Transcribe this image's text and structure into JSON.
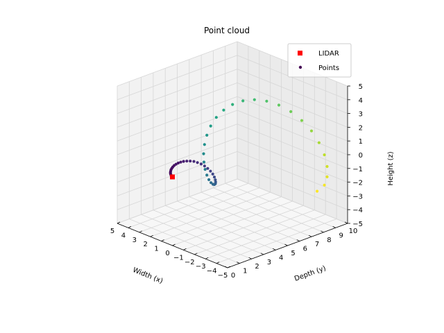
{
  "chart_data": {
    "type": "scatter",
    "title": "Point cloud",
    "xlabel": "Width (x)",
    "ylabel": "Depth (y)",
    "zlabel": "Height (z)",
    "xlim": [
      -5,
      5
    ],
    "ylim": [
      0,
      10
    ],
    "zlim": [
      -5,
      5
    ],
    "xticks": [
      "−5",
      "−4",
      "−3",
      "−2",
      "−1",
      "0",
      "1",
      "2",
      "3",
      "4",
      "5"
    ],
    "yticks": [
      "0",
      "1",
      "2",
      "3",
      "4",
      "5",
      "6",
      "7",
      "8",
      "9",
      "10"
    ],
    "zticks": [
      "−5",
      "−4",
      "−3",
      "−2",
      "−1",
      "0",
      "1",
      "2",
      "3",
      "4",
      "5"
    ],
    "grid": true,
    "legend": {
      "position": "top-right",
      "entries": [
        "LIDAR",
        "Points"
      ]
    },
    "colors": {
      "lidar": "#ff0000",
      "points_low": "#440154",
      "points_high": "#fde725"
    },
    "series": [
      {
        "name": "LIDAR",
        "marker": "square",
        "points": [
          [
            0,
            0,
            0
          ]
        ]
      },
      {
        "name": "Points",
        "marker": "circle",
        "colormap": "viridis",
        "color_by": "y",
        "points": [
          [
            0.0,
            0.0,
            0.0
          ],
          [
            0.1,
            0.03,
            0.01
          ],
          [
            0.18,
            0.06,
            0.03
          ],
          [
            0.25,
            0.1,
            0.05
          ],
          [
            0.32,
            0.14,
            0.09
          ],
          [
            0.38,
            0.19,
            0.14
          ],
          [
            0.42,
            0.24,
            0.2
          ],
          [
            0.45,
            0.3,
            0.28
          ],
          [
            0.45,
            0.36,
            0.36
          ],
          [
            0.43,
            0.43,
            0.45
          ],
          [
            0.38,
            0.5,
            0.55
          ],
          [
            0.3,
            0.58,
            0.64
          ],
          [
            0.2,
            0.67,
            0.73
          ],
          [
            0.07,
            0.76,
            0.81
          ],
          [
            -0.08,
            0.86,
            0.88
          ],
          [
            -0.25,
            0.97,
            0.92
          ],
          [
            -0.43,
            1.09,
            0.94
          ],
          [
            -0.62,
            1.22,
            0.93
          ],
          [
            -0.8,
            1.35,
            0.87
          ],
          [
            -0.97,
            1.5,
            0.77
          ],
          [
            -1.12,
            1.65,
            0.62
          ],
          [
            -1.23,
            1.81,
            0.43
          ],
          [
            -1.3,
            1.98,
            0.2
          ],
          [
            -1.31,
            2.16,
            -0.07
          ],
          [
            -1.26,
            2.34,
            -0.36
          ],
          [
            -1.14,
            2.53,
            -0.66
          ],
          [
            -0.95,
            2.73,
            -0.95
          ],
          [
            -0.7,
            2.94,
            -1.22
          ],
          [
            -0.38,
            3.15,
            -1.45
          ],
          [
            -0.01,
            3.37,
            -1.62
          ],
          [
            0.41,
            3.59,
            -1.71
          ],
          [
            0.85,
            3.82,
            -1.71
          ],
          [
            1.29,
            4.06,
            -1.6
          ],
          [
            1.71,
            4.3,
            -1.39
          ],
          [
            2.08,
            4.54,
            -1.06
          ],
          [
            2.38,
            4.79,
            -0.63
          ],
          [
            2.58,
            5.05,
            -0.11
          ],
          [
            2.65,
            5.31,
            0.46
          ],
          [
            2.59,
            5.57,
            1.07
          ],
          [
            2.37,
            5.84,
            1.68
          ],
          [
            2.0,
            6.11,
            2.24
          ],
          [
            1.49,
            6.38,
            2.73
          ],
          [
            0.85,
            6.66,
            3.11
          ],
          [
            0.11,
            6.94,
            3.34
          ],
          [
            -0.68,
            7.23,
            3.4
          ],
          [
            -1.48,
            7.51,
            3.28
          ],
          [
            -2.25,
            7.8,
            2.96
          ],
          [
            -2.93,
            8.09,
            2.44
          ],
          [
            -3.48,
            8.39,
            1.76
          ],
          [
            -3.85,
            8.68,
            0.93
          ],
          [
            -4.01,
            8.98,
            0.0
          ],
          [
            -3.93,
            9.28,
            -0.97
          ],
          [
            -3.6,
            9.58,
            -1.93
          ],
          [
            -3.03,
            9.88,
            -2.81
          ],
          [
            -2.24,
            10.0,
            -3.55
          ]
        ]
      }
    ]
  }
}
